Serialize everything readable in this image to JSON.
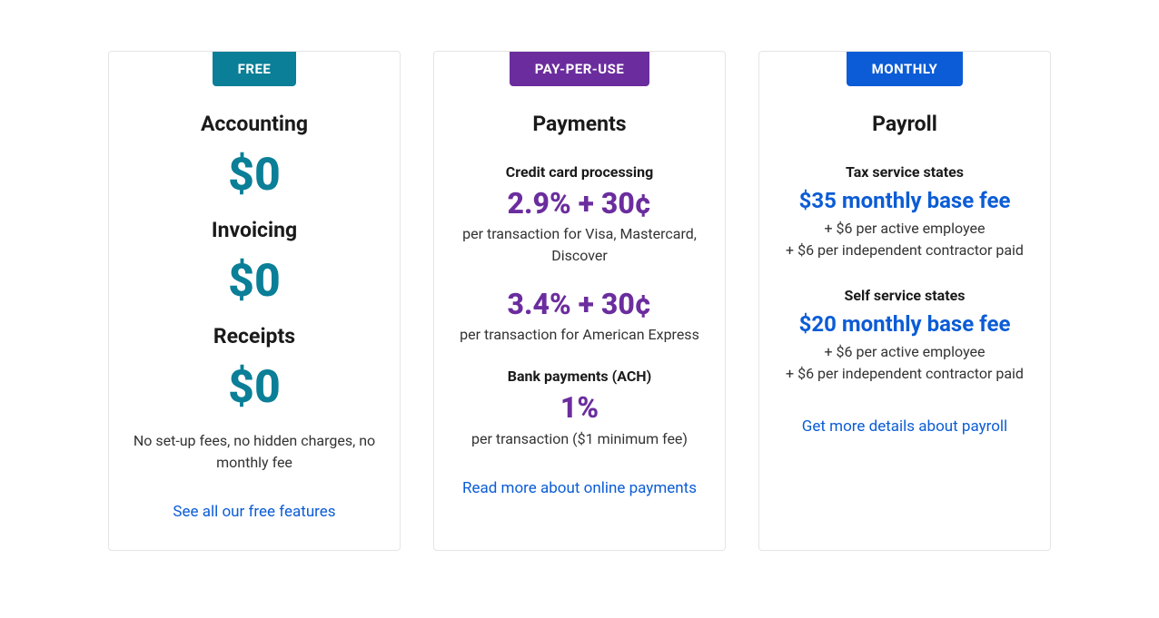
{
  "colors": {
    "teal": "#0a7f97",
    "purple": "#6b2d9e",
    "blue": "#0b5cd6",
    "link": "#0b5cd6",
    "text_dark": "#1a1a1a",
    "text_body": "#333333"
  },
  "cards": [
    {
      "badge": "FREE",
      "badge_color": "#0a7f97",
      "title": "Accounting",
      "price_color": "#0a7f97",
      "items": [
        {
          "label": "Accounting",
          "price": "$0"
        },
        {
          "label": "Invoicing",
          "price": "$0"
        },
        {
          "label": "Receipts",
          "price": "$0"
        }
      ],
      "note": "No set-up fees, no hidden charges, no monthly fee",
      "link": "See all our free features"
    },
    {
      "badge": "PAY-PER-USE",
      "badge_color": "#6b2d9e",
      "title": "Payments",
      "price_color": "#6b2d9e",
      "sections": [
        {
          "label": "Credit card processing",
          "price": "2.9% + 30¢",
          "sub": "per transaction for Visa, Mastercard, Discover"
        },
        {
          "label": "",
          "price": "3.4% + 30¢",
          "sub": "per transaction for American Express"
        },
        {
          "label": "Bank payments (ACH)",
          "price": "1%",
          "sub": "per transaction ($1 minimum fee)"
        }
      ],
      "link": "Read more about online payments"
    },
    {
      "badge": "MONTHLY",
      "badge_color": "#0b5cd6",
      "title": "Payroll",
      "price_color": "#0b5cd6",
      "tiers": [
        {
          "label": "Tax service states",
          "price": "$35 monthly base fee",
          "addons": [
            "+ $6 per active employee",
            "+ $6 per independent contractor paid"
          ]
        },
        {
          "label": "Self service states",
          "price": "$20 monthly base fee",
          "addons": [
            "+ $6 per active employee",
            "+ $6 per independent contractor paid"
          ]
        }
      ],
      "link": "Get more details about payroll"
    }
  ]
}
